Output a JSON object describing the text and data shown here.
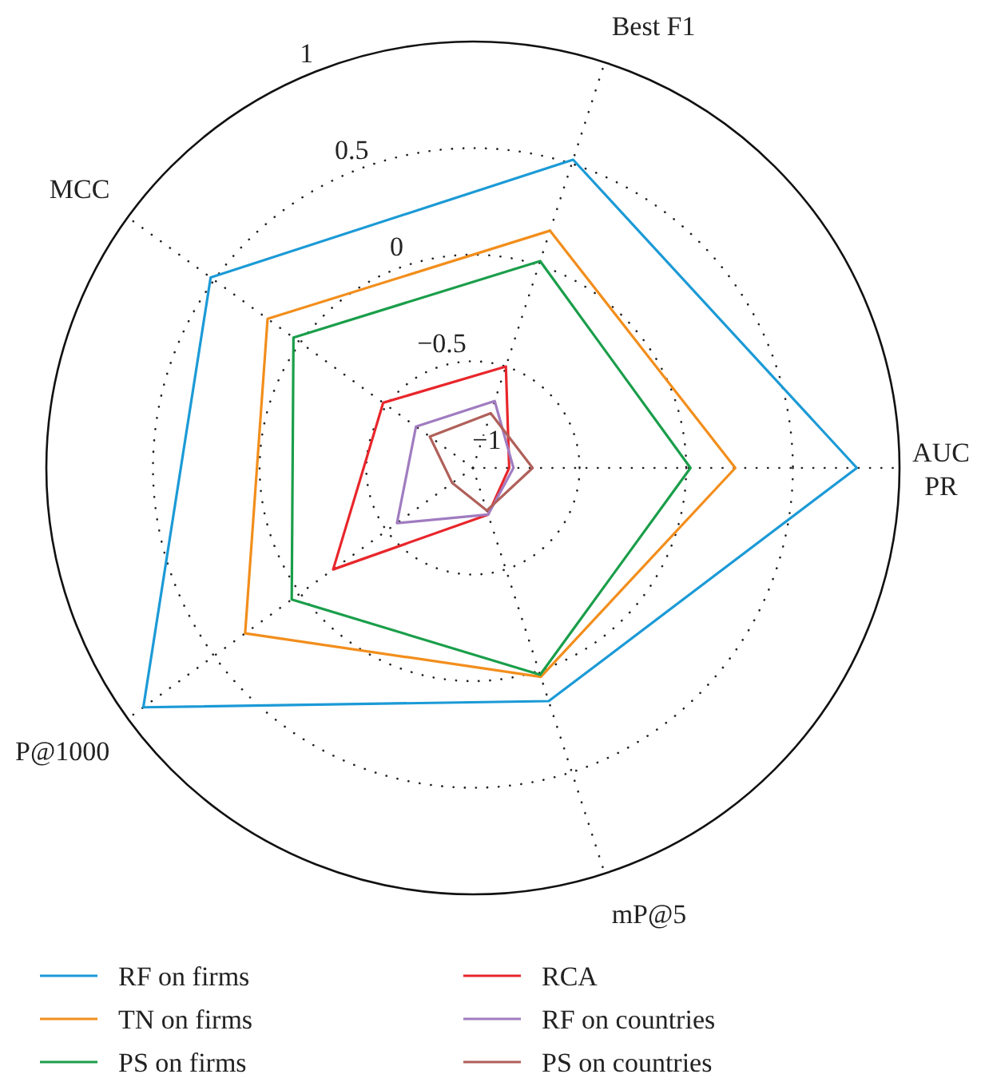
{
  "chart_data": {
    "type": "radar",
    "categories": [
      "Best F1",
      "AUC PR",
      "mP@5",
      "P@1000",
      "MCC"
    ],
    "ylim": [
      -1,
      1
    ],
    "yticks": [
      -1,
      -0.5,
      0,
      0.5,
      1
    ],
    "grid": true,
    "legend": "bottom",
    "series": [
      {
        "name": "RF on firms",
        "color": "#1b9ad6",
        "values": [
          0.52,
          0.8,
          0.15,
          0.91,
          0.52
        ]
      },
      {
        "name": "TN on firms",
        "color": "#f28e1c",
        "values": [
          0.17,
          0.23,
          0.03,
          0.32,
          0.19
        ]
      },
      {
        "name": "PS on firms",
        "color": "#1a9e4a",
        "values": [
          0.02,
          0.02,
          0.02,
          0.05,
          0.04
        ]
      },
      {
        "name": "RCA",
        "color": "#e8262b",
        "values": [
          -0.5,
          -0.83,
          -0.77,
          -0.19,
          -0.48
        ]
      },
      {
        "name": "RF on countries",
        "color": "#a07cc0",
        "values": [
          -0.67,
          -0.81,
          -0.77,
          -0.56,
          -0.67
        ]
      },
      {
        "name": "PS on countries",
        "color": "#b0605a",
        "values": [
          -0.73,
          -0.72,
          -0.79,
          -0.88,
          -0.75
        ]
      }
    ]
  }
}
